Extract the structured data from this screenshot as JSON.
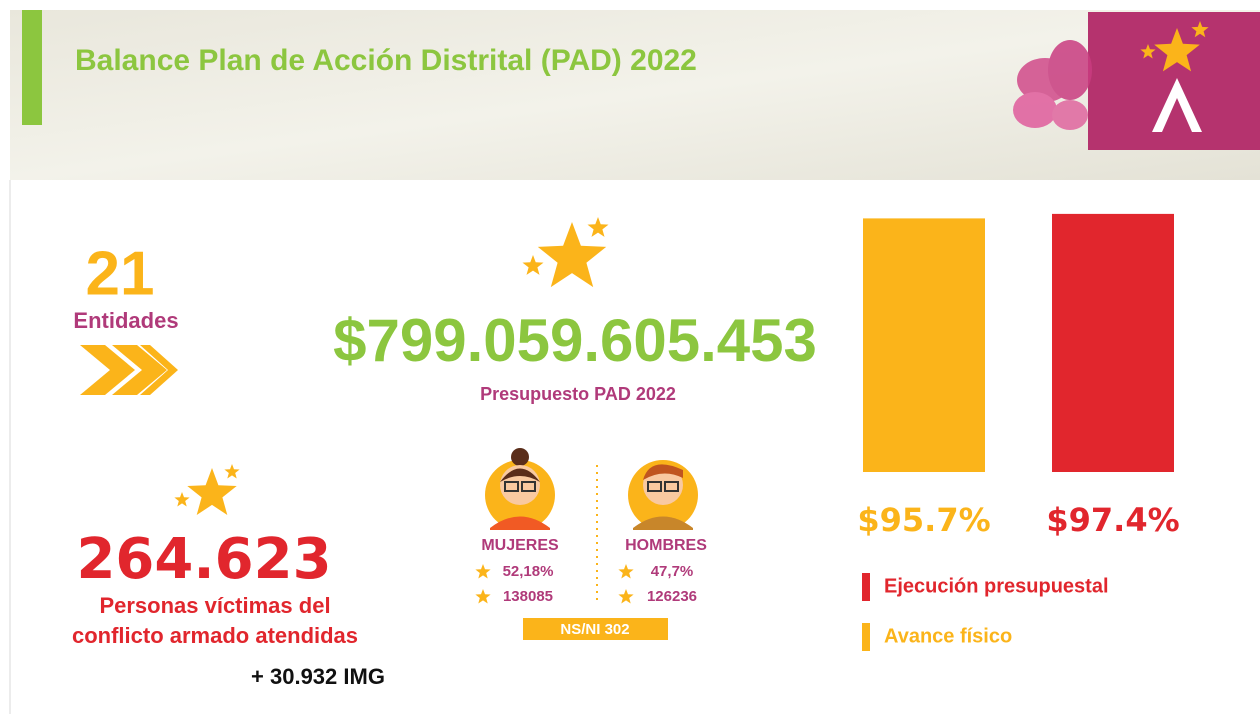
{
  "header": {
    "title": "Balance Plan de Acción Distrital (PAD) 2022"
  },
  "entities": {
    "number": "21",
    "label": "Entidades"
  },
  "budget": {
    "amount": "$799.059.605.453",
    "label": "Presupuesto PAD 2022"
  },
  "victims": {
    "number": "264.623",
    "label_lines": [
      "Personas víctimas del",
      "conflicto armado atendidas"
    ],
    "extra": "+ 30.932 IMG"
  },
  "gender": {
    "women": {
      "label": "MUJERES",
      "percent": "52,18%",
      "count": "138085"
    },
    "men": {
      "label": "HOMBRES",
      "percent": "47,7%",
      "count": "126236"
    },
    "other": "NS/NI 302"
  },
  "chart_data": {
    "type": "bar",
    "series": [
      {
        "name": "Avance físico",
        "color": "#fbb41a",
        "values": [
          95.7
        ],
        "value_labels": [
          "$95.7%"
        ]
      },
      {
        "name": "Ejecución presupuestal",
        "color": "#e1262d",
        "values": [
          97.4
        ],
        "value_labels": [
          "$97.4%"
        ]
      }
    ]
  }
}
